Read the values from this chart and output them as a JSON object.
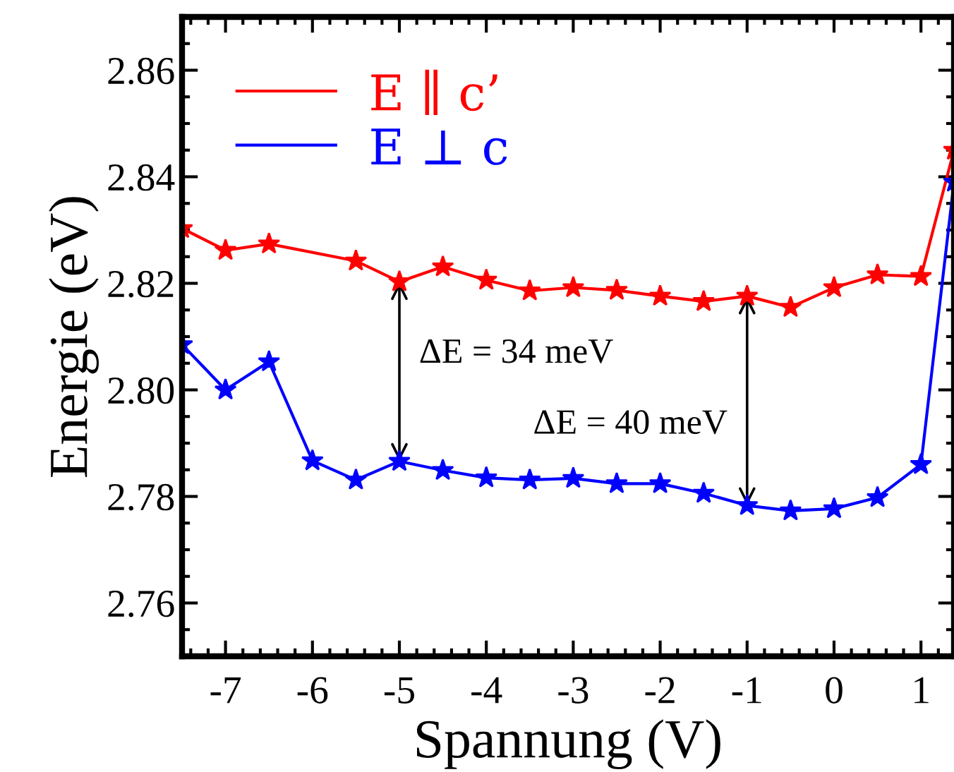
{
  "chart_data": {
    "type": "line",
    "xlabel": "Spannung (V)",
    "ylabel": "Energie (eV)",
    "x": [
      -7.5,
      -7,
      -6.5,
      -6,
      -5.5,
      -5,
      -4.5,
      -4,
      -3.5,
      -3,
      -2.5,
      -2,
      -1.5,
      -1,
      -0.5,
      0,
      0.5,
      1,
      1.38
    ],
    "series": [
      {
        "name": "E ∥ c’",
        "color": "#ff0000",
        "x": [
          -7.5,
          -7,
          -6.5,
          -5.5,
          -5,
          -4.5,
          -4,
          -3.5,
          -3,
          -2.5,
          -2,
          -1.5,
          -1,
          -0.5,
          0,
          0.5,
          1,
          1.38
        ],
        "values": [
          2.8303,
          2.8262,
          2.8274,
          2.8242,
          2.8203,
          2.8231,
          2.8206,
          2.8186,
          2.8192,
          2.8187,
          2.8176,
          2.8166,
          2.8176,
          2.8155,
          2.8192,
          2.8216,
          2.8213,
          2.845
        ]
      },
      {
        "name": "E ⊥ c",
        "color": "#0000ff",
        "values": [
          2.8085,
          2.8,
          2.8053,
          2.7867,
          2.7831,
          2.7866,
          2.7849,
          2.7835,
          2.7831,
          2.7834,
          2.7824,
          2.7824,
          2.7806,
          2.7783,
          2.7773,
          2.7777,
          2.7798,
          2.786,
          2.839
        ]
      }
    ],
    "annotations": [
      {
        "text": "ΔE = 34 meV",
        "x": -5,
        "y": 2.8203
      },
      {
        "text": "ΔE = 40 meV",
        "x": -1,
        "y": 2.7783
      }
    ],
    "xlim": [
      -7.5,
      1.38
    ],
    "xticks": [
      -7,
      -6,
      -5,
      -4,
      -3,
      -2,
      -1,
      0,
      1
    ],
    "ylim": [
      2.75,
      2.87
    ],
    "yticks": [
      {
        "value": 2.76,
        "label": "2.76"
      },
      {
        "value": 2.78,
        "label": "2.78"
      },
      {
        "value": 2.8,
        "label": "2.80"
      },
      {
        "value": 2.82,
        "label": "2.82"
      },
      {
        "value": 2.84,
        "label": "2.84"
      },
      {
        "value": 2.86,
        "label": "2.86"
      }
    ],
    "marker": "star",
    "line_style": "solid",
    "grid": false,
    "legend": "top left"
  }
}
